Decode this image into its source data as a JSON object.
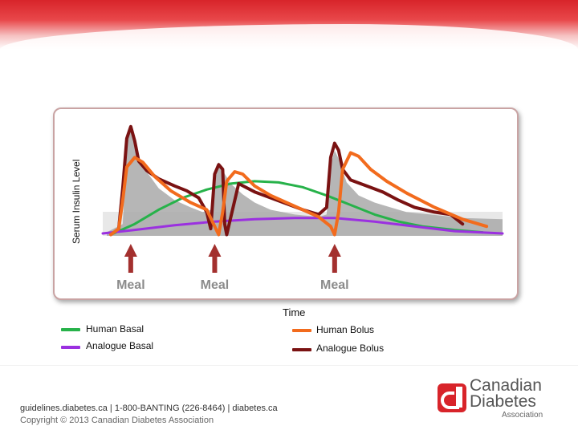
{
  "colors": {
    "human_basal": "#27b24a",
    "analogue_basal": "#9b30e0",
    "human_bolus": "#f26b1d",
    "analogue_bolus": "#7a1212",
    "meal_arrow": "#a3302e",
    "shaded_area": "#a9a9a9",
    "brand_red": "#d8242a"
  },
  "chart_data": {
    "type": "line",
    "title": "",
    "xlabel": "Time",
    "ylabel": "Serum Insulin Level",
    "xlim": [
      0,
      100
    ],
    "ylim": [
      0,
      100
    ],
    "grid": false,
    "legend_position": "bottom",
    "meals": [
      {
        "label": "Meal",
        "time": 7
      },
      {
        "label": "Meal",
        "time": 28
      },
      {
        "label": "Meal",
        "time": 58
      }
    ],
    "shaded_area": {
      "name": "shaded-insulin-area",
      "points": [
        [
          1,
          3
        ],
        [
          5,
          10
        ],
        [
          6,
          80
        ],
        [
          7,
          88
        ],
        [
          8,
          80
        ],
        [
          9,
          66
        ],
        [
          11,
          54
        ],
        [
          14,
          40
        ],
        [
          18,
          30
        ],
        [
          22,
          24
        ],
        [
          25,
          20
        ],
        [
          27,
          22
        ],
        [
          28,
          55
        ],
        [
          29,
          62
        ],
        [
          30,
          55
        ],
        [
          32,
          44
        ],
        [
          35,
          35
        ],
        [
          38,
          28
        ],
        [
          42,
          22
        ],
        [
          48,
          18
        ],
        [
          54,
          16
        ],
        [
          56,
          18
        ],
        [
          57,
          60
        ],
        [
          58,
          72
        ],
        [
          59,
          65
        ],
        [
          61,
          45
        ],
        [
          64,
          34
        ],
        [
          68,
          28
        ],
        [
          72,
          24
        ],
        [
          76,
          20
        ],
        [
          82,
          18
        ],
        [
          90,
          15
        ],
        [
          100,
          14
        ],
        [
          100,
          0
        ],
        [
          1,
          0
        ]
      ]
    },
    "series": [
      {
        "name": "Human Basal",
        "color": "#27b24a",
        "points": [
          [
            2,
            1
          ],
          [
            8,
            10
          ],
          [
            14,
            22
          ],
          [
            20,
            32
          ],
          [
            26,
            39
          ],
          [
            32,
            44
          ],
          [
            38,
            46
          ],
          [
            44,
            45
          ],
          [
            50,
            41
          ],
          [
            56,
            34
          ],
          [
            62,
            26
          ],
          [
            68,
            18
          ],
          [
            74,
            12
          ],
          [
            80,
            8
          ],
          [
            88,
            5
          ],
          [
            95,
            3
          ]
        ]
      },
      {
        "name": "Analogue Basal",
        "color": "#9b30e0",
        "points": [
          [
            0,
            2
          ],
          [
            8,
            5
          ],
          [
            18,
            9
          ],
          [
            28,
            12
          ],
          [
            38,
            14
          ],
          [
            48,
            15
          ],
          [
            58,
            15
          ],
          [
            68,
            12
          ],
          [
            78,
            8
          ],
          [
            88,
            4
          ],
          [
            100,
            2
          ]
        ]
      },
      {
        "name": "Human Bolus",
        "color": "#f26b1d",
        "points": [
          [
            2,
            1
          ],
          [
            4,
            6
          ],
          [
            5,
            30
          ],
          [
            6,
            58
          ],
          [
            8,
            66
          ],
          [
            10,
            62
          ],
          [
            13,
            50
          ],
          [
            17,
            38
          ],
          [
            22,
            28
          ],
          [
            26,
            22
          ],
          [
            28,
            8
          ],
          [
            29,
            1
          ],
          [
            30,
            20
          ],
          [
            31,
            46
          ],
          [
            33,
            54
          ],
          [
            35,
            52
          ],
          [
            38,
            42
          ],
          [
            42,
            34
          ],
          [
            46,
            28
          ],
          [
            50,
            22
          ],
          [
            54,
            16
          ],
          [
            57,
            8
          ],
          [
            58,
            1
          ],
          [
            59,
            20
          ],
          [
            60,
            56
          ],
          [
            62,
            70
          ],
          [
            64,
            67
          ],
          [
            67,
            56
          ],
          [
            71,
            46
          ],
          [
            76,
            36
          ],
          [
            83,
            24
          ],
          [
            90,
            14
          ],
          [
            96,
            8
          ]
        ]
      },
      {
        "name": "Analogue Bolus",
        "color": "#7a1212",
        "points": [
          [
            4,
            6
          ],
          [
            5,
            40
          ],
          [
            6,
            82
          ],
          [
            7,
            92
          ],
          [
            8,
            80
          ],
          [
            9,
            63
          ],
          [
            11,
            55
          ],
          [
            14,
            48
          ],
          [
            18,
            42
          ],
          [
            21,
            38
          ],
          [
            24,
            32
          ],
          [
            26,
            20
          ],
          [
            27,
            6
          ],
          [
            28,
            52
          ],
          [
            29,
            60
          ],
          [
            30,
            56
          ],
          [
            30.5,
            10
          ],
          [
            31,
            1
          ],
          [
            34,
            44
          ],
          [
            38,
            37
          ],
          [
            42,
            32
          ],
          [
            46,
            27
          ],
          [
            50,
            22
          ],
          [
            54,
            18
          ],
          [
            56,
            24
          ],
          [
            57,
            66
          ],
          [
            58,
            78
          ],
          [
            59,
            72
          ],
          [
            60,
            56
          ],
          [
            62,
            47
          ],
          [
            66,
            42
          ],
          [
            70,
            37
          ],
          [
            74,
            30
          ],
          [
            78,
            24
          ],
          [
            83,
            20
          ],
          [
            87,
            18
          ],
          [
            90,
            10
          ]
        ]
      }
    ],
    "legend": [
      {
        "label": "Human Basal",
        "color": "#27b24a"
      },
      {
        "label": "Analogue Basal",
        "color": "#9b30e0"
      },
      {
        "label": "Human Bolus",
        "color": "#f26b1d"
      },
      {
        "label": "Analogue Bolus",
        "color": "#7a1212"
      }
    ]
  },
  "footer": {
    "links": "guidelines.diabetes.ca  |  1-800-BANTING (226-8464)  |  diabetes.ca",
    "copyright": "Copyright © 2013 Canadian Diabetes Association"
  },
  "logo": {
    "line1": "Canadian",
    "line2": "Diabetes",
    "line3": "Association"
  }
}
